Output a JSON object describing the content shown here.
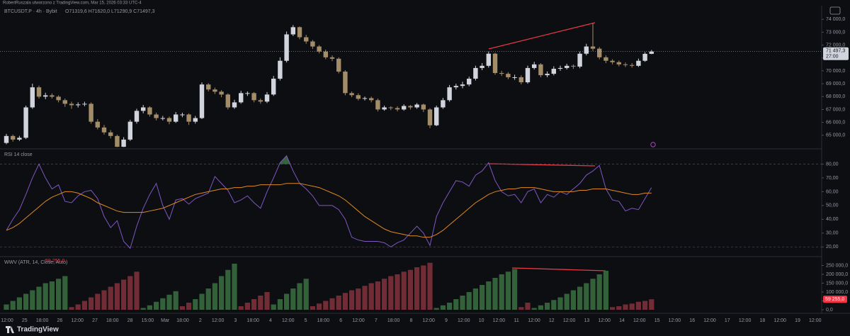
{
  "header": {
    "author_line": "RobertRuszala utworzono z TradingView.com, Mar 15, 2026 03:33 UTC-4",
    "brand": "TradingView"
  },
  "time_axis": {
    "labels": [
      "12:00",
      "25",
      "18:00",
      "26",
      "12:00",
      "27",
      "18:00",
      "28",
      "15:00",
      "Mar",
      "18:00",
      "2",
      "12:00",
      "3",
      "18:00",
      "4",
      "12:00",
      "5",
      "18:00",
      "6",
      "12:00",
      "7",
      "18:00",
      "8",
      "12:00",
      "9",
      "12:00",
      "10",
      "12:00",
      "11",
      "12:00",
      "12",
      "12:00",
      "13",
      "12:00",
      "14",
      "12:00",
      "15",
      "12:00",
      "16",
      "12:00",
      "17",
      "12:00",
      "18",
      "12:00",
      "19",
      "12:00"
    ]
  },
  "chart_data": [
    {
      "type": "candlestick",
      "title": "BTCUSDT.P · 4h · Bybit",
      "ohlc_text": "O71319,6 H71620,0 L71290,9 C71497,3",
      "last_label": "71 497,3",
      "countdown": "27:00",
      "up_color": "#d1d4dc",
      "down_color": "#a38c68",
      "open": [
        64400,
        64940,
        64660,
        64800,
        67160,
        68720,
        67995,
        68100,
        67990,
        67720,
        67440,
        67330,
        67390,
        67440,
        66050,
        65600,
        65220,
        64940,
        64100,
        64660,
        66050,
        66890,
        67160,
        66610,
        66330,
        66330,
        66050,
        66610,
        66610,
        66050,
        66330,
        68940,
        68550,
        68380,
        68160,
        67160,
        67550,
        68270,
        68270,
        67720,
        67610,
        68160,
        69390,
        70780,
        72830,
        73390,
        72610,
        72280,
        71890,
        71500,
        71050,
        70940,
        69940,
        68270,
        68110,
        67830,
        67880,
        67720,
        67000,
        67160,
        67110,
        67000,
        67270,
        67160,
        67380,
        67000,
        65770,
        67160,
        67720,
        68720,
        68830,
        68940,
        69390,
        70220,
        70390,
        71330,
        69830,
        69770,
        69500,
        69500,
        69110,
        70220,
        70500,
        69660,
        69770,
        70160,
        70220,
        70390,
        70330,
        71330,
        71890,
        71720,
        71050,
        70780,
        70670,
        70500,
        70450,
        70390,
        70780,
        71319.6
      ],
      "high": [
        65100,
        65050,
        64950,
        67300,
        69000,
        68850,
        68300,
        68250,
        68100,
        67850,
        67600,
        67550,
        67600,
        67550,
        66250,
        65800,
        65400,
        65050,
        64850,
        66200,
        67050,
        67350,
        67250,
        66750,
        66500,
        66450,
        66800,
        66750,
        66700,
        66500,
        69100,
        69050,
        68700,
        68500,
        68250,
        67750,
        68450,
        68400,
        68350,
        67850,
        68350,
        69600,
        71050,
        73050,
        73550,
        73450,
        72800,
        72400,
        72000,
        71650,
        71200,
        71050,
        70050,
        68400,
        68250,
        68000,
        68000,
        67850,
        67300,
        67250,
        67250,
        67400,
        67350,
        67500,
        67450,
        67100,
        67300,
        67900,
        68900,
        69000,
        69150,
        69550,
        70400,
        70600,
        71500,
        71400,
        70000,
        69900,
        69700,
        69650,
        70400,
        70700,
        70600,
        69950,
        70350,
        70400,
        70550,
        70500,
        71500,
        72100,
        73700,
        71850,
        71200,
        70900,
        70800,
        70650,
        70600,
        70950,
        71450,
        71620
      ],
      "low": [
        64300,
        64500,
        64550,
        64700,
        67050,
        67850,
        67800,
        67850,
        67550,
        67200,
        67050,
        67150,
        67250,
        65900,
        65450,
        65050,
        64750,
        64080,
        64080,
        64550,
        65900,
        66700,
        66450,
        66150,
        66150,
        65850,
        65950,
        66400,
        65800,
        65900,
        66250,
        68400,
        68200,
        67950,
        67000,
        67050,
        67450,
        68050,
        67550,
        67450,
        67500,
        68050,
        69250,
        70650,
        72700,
        72450,
        72100,
        71700,
        71350,
        70900,
        70750,
        69800,
        68100,
        67950,
        67700,
        67700,
        67550,
        66850,
        66900,
        66950,
        66850,
        66900,
        67000,
        67050,
        66800,
        65550,
        65700,
        67050,
        67600,
        68550,
        68650,
        68800,
        69250,
        70050,
        70250,
        69700,
        69600,
        69350,
        69300,
        68950,
        69000,
        70100,
        69500,
        69500,
        69650,
        70000,
        70100,
        70150,
        70200,
        71200,
        71550,
        70900,
        70600,
        70500,
        70350,
        70300,
        70250,
        70300,
        70700,
        71290.9
      ],
      "close": [
        64940,
        64660,
        64800,
        67160,
        68720,
        67995,
        68100,
        67990,
        67720,
        67440,
        67330,
        67390,
        67440,
        66050,
        65600,
        65220,
        64940,
        64100,
        64660,
        66050,
        66890,
        67160,
        66610,
        66330,
        66330,
        66050,
        66610,
        66610,
        66050,
        66330,
        68940,
        68550,
        68380,
        68160,
        67160,
        67550,
        68270,
        68270,
        67720,
        67610,
        68160,
        69390,
        70780,
        72830,
        73390,
        72610,
        72280,
        71890,
        71500,
        71050,
        70940,
        69940,
        68270,
        68110,
        67830,
        67880,
        67720,
        67000,
        67160,
        67110,
        67000,
        67270,
        67160,
        67380,
        67000,
        65770,
        67160,
        67720,
        68720,
        68830,
        68940,
        69390,
        70220,
        70390,
        71330,
        69830,
        69770,
        69500,
        69500,
        69110,
        70220,
        70500,
        69660,
        69770,
        70160,
        70220,
        70390,
        70330,
        71330,
        71890,
        71720,
        71050,
        70780,
        70670,
        70500,
        70450,
        70390,
        70780,
        71319.6,
        71497.3
      ],
      "ylim": [
        64050,
        74950
      ],
      "yticks": [
        {
          "value": 65000,
          "label": "65 000,0"
        },
        {
          "value": 66000,
          "label": "66 000,0"
        },
        {
          "value": 67000,
          "label": "67 000,0"
        },
        {
          "value": 68000,
          "label": "68 000,0"
        },
        {
          "value": 69000,
          "label": "69 000,0"
        },
        {
          "value": 70000,
          "label": "70 000,0"
        },
        {
          "value": 71000,
          "label": "71 000,0"
        },
        {
          "value": 72000,
          "label": "72 000,0"
        },
        {
          "value": 73000,
          "label": "73 000,0"
        },
        {
          "value": 74000,
          "label": "74 000,0"
        }
      ]
    },
    {
      "type": "line",
      "title": "RSI 14 close",
      "ylim": [
        14,
        90
      ],
      "bands": [
        80,
        20
      ],
      "overbought_color": "#3d7a45",
      "oversold_color": "#8a2f3c",
      "yticks": [
        {
          "value": 20,
          "label": "20,00"
        },
        {
          "value": 30,
          "label": "30,00"
        },
        {
          "value": 40,
          "label": "40,00"
        },
        {
          "value": 50,
          "label": "50,00"
        },
        {
          "value": 60,
          "label": "60,00"
        },
        {
          "value": 70,
          "label": "70,00"
        },
        {
          "value": 80,
          "label": "80,00"
        }
      ],
      "series": [
        {
          "name": "RSI",
          "color": "#7e57c2",
          "filled": true,
          "values": [
            32,
            40,
            47,
            58,
            70,
            80,
            70,
            62,
            65,
            53,
            52,
            57,
            60,
            61,
            55,
            42,
            34,
            39,
            24,
            19,
            35,
            48,
            58,
            66,
            50,
            40,
            54,
            55,
            51,
            55,
            57,
            59,
            71,
            66,
            61,
            52,
            54,
            57,
            52,
            48,
            60,
            70,
            81,
            86,
            75,
            66,
            62,
            57,
            50,
            50,
            50,
            47,
            40,
            27,
            25,
            24,
            24,
            24,
            23,
            20,
            23,
            25,
            30,
            35,
            30,
            21,
            42,
            52,
            60,
            68,
            67,
            64,
            72,
            75,
            81,
            68,
            60,
            57,
            58,
            52,
            60,
            62,
            52,
            58,
            56,
            60,
            58,
            62,
            66,
            72,
            75,
            79,
            62,
            54,
            53,
            46,
            48,
            47,
            55,
            63
          ]
        },
        {
          "name": "RSI MA",
          "color": "#e0891f",
          "values": [
            32,
            34,
            37,
            41,
            45,
            49,
            53,
            56,
            58,
            60,
            60,
            59,
            57,
            55,
            52,
            50,
            48,
            46,
            45,
            45,
            45,
            45,
            46,
            47,
            48,
            50,
            52,
            54,
            56,
            58,
            59,
            60,
            61,
            62,
            62,
            63,
            63,
            64,
            64,
            65,
            65,
            65,
            65,
            66,
            66,
            66,
            65,
            64,
            63,
            61,
            59,
            57,
            54,
            50,
            46,
            42,
            39,
            36,
            33,
            31,
            30,
            29,
            28,
            28,
            27,
            27,
            29,
            32,
            36,
            40,
            44,
            48,
            52,
            55,
            58,
            60,
            61,
            62,
            62,
            63,
            63,
            63,
            62,
            61,
            60,
            60,
            60,
            60,
            61,
            61,
            62,
            62,
            62,
            61,
            60,
            59,
            58,
            58,
            59,
            59
          ]
        }
      ]
    },
    {
      "type": "bar",
      "title": "WWV (ATR, 14, Close, Auto)",
      "last_label": "59 255,0",
      "last_color": "#f23645",
      "ylim": [
        -12000,
        292000
      ],
      "yticks": [
        {
          "value": 0,
          "label": "0,0"
        },
        {
          "value": 50000,
          "label": "50 000,0"
        },
        {
          "value": 100000,
          "label": "100 000,0"
        },
        {
          "value": 150000,
          "label": "150 000,0"
        },
        {
          "value": 200000,
          "label": "200 000,0"
        },
        {
          "value": 250000,
          "label": "250 000,0"
        }
      ],
      "values": [
        30000,
        50000,
        70000,
        90000,
        110000,
        130000,
        150000,
        160000,
        175000,
        190000,
        15000,
        30000,
        50000,
        70000,
        90000,
        110000,
        130000,
        150000,
        170000,
        190000,
        215000,
        10000,
        25000,
        45000,
        65000,
        85000,
        105000,
        20000,
        40000,
        60000,
        90000,
        120000,
        150000,
        190000,
        225000,
        260000,
        20000,
        40000,
        60000,
        80000,
        100000,
        30000,
        60000,
        90000,
        120000,
        150000,
        175000,
        20000,
        35000,
        50000,
        65000,
        80000,
        95000,
        110000,
        120000,
        135000,
        150000,
        160000,
        175000,
        190000,
        200000,
        215000,
        225000,
        240000,
        250000,
        265000,
        10000,
        25000,
        40000,
        60000,
        80000,
        100000,
        120000,
        140000,
        160000,
        180000,
        200000,
        215000,
        230000,
        15000,
        40000,
        10000,
        25000,
        40000,
        55000,
        70000,
        90000,
        110000,
        130000,
        150000,
        175000,
        200000,
        220000,
        15000,
        20000,
        30000,
        35000,
        45000,
        50000,
        59255
      ],
      "bar_colors": [
        "#33623a",
        "#33623a",
        "#33623a",
        "#33623a",
        "#33623a",
        "#33623a",
        "#33623a",
        "#33623a",
        "#33623a",
        "#33623a",
        "#722c36",
        "#722c36",
        "#722c36",
        "#722c36",
        "#722c36",
        "#722c36",
        "#722c36",
        "#722c36",
        "#722c36",
        "#722c36",
        "#722c36",
        "#33623a",
        "#33623a",
        "#33623a",
        "#33623a",
        "#33623a",
        "#33623a",
        "#722c36",
        "#722c36",
        "#33623a",
        "#33623a",
        "#33623a",
        "#33623a",
        "#33623a",
        "#33623a",
        "#33623a",
        "#722c36",
        "#722c36",
        "#722c36",
        "#722c36",
        "#722c36",
        "#33623a",
        "#33623a",
        "#33623a",
        "#33623a",
        "#33623a",
        "#33623a",
        "#722c36",
        "#722c36",
        "#722c36",
        "#722c36",
        "#722c36",
        "#722c36",
        "#722c36",
        "#722c36",
        "#722c36",
        "#722c36",
        "#722c36",
        "#722c36",
        "#722c36",
        "#722c36",
        "#722c36",
        "#722c36",
        "#722c36",
        "#722c36",
        "#722c36",
        "#33623a",
        "#33623a",
        "#33623a",
        "#33623a",
        "#33623a",
        "#33623a",
        "#33623a",
        "#33623a",
        "#33623a",
        "#33623a",
        "#33623a",
        "#33623a",
        "#33623a",
        "#722c36",
        "#722c36",
        "#33623a",
        "#33623a",
        "#33623a",
        "#33623a",
        "#33623a",
        "#33623a",
        "#33623a",
        "#33623a",
        "#33623a",
        "#33623a",
        "#33623a",
        "#33623a",
        "#722c36",
        "#722c36",
        "#722c36",
        "#722c36",
        "#722c36",
        "#722c36",
        "#722c36"
      ]
    }
  ]
}
